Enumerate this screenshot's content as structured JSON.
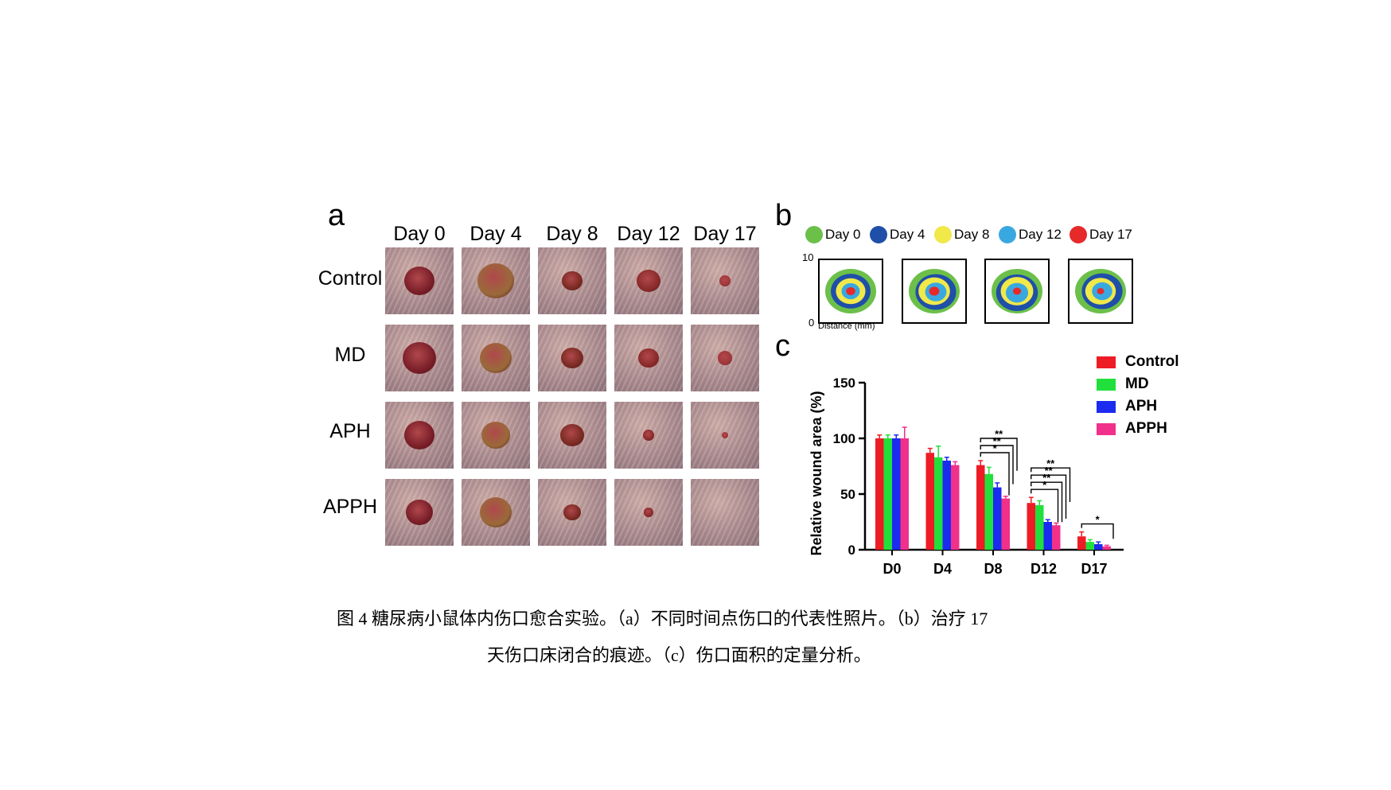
{
  "panel_a": {
    "letter": "a",
    "columns": [
      "Day 0",
      "Day 4",
      "Day 8",
      "Day 12",
      "Day 17"
    ],
    "rows": [
      "Control",
      "MD",
      "APH",
      "APPH"
    ]
  },
  "panel_b": {
    "letter": "b",
    "legend": [
      {
        "label": "Day 0",
        "color": "#6cc04a"
      },
      {
        "label": "Day 4",
        "color": "#1f4fa8"
      },
      {
        "label": "Day 8",
        "color": "#f1e84a"
      },
      {
        "label": "Day 12",
        "color": "#3aa8e0"
      },
      {
        "label": "Day 17",
        "color": "#e62a2a"
      }
    ],
    "axis_top": "10",
    "axis_bottom": "0",
    "axis_label": "Distance (mm)"
  },
  "panel_c": {
    "letter": "c"
  },
  "chart_data": {
    "type": "bar",
    "ylabel": "Relative wound area (%)",
    "xlabel": "",
    "ylim": [
      0,
      150
    ],
    "yticks": [
      "0",
      "50",
      "100",
      "150"
    ],
    "categories": [
      "D0",
      "D4",
      "D8",
      "D12",
      "D17"
    ],
    "legend_position": "top-right",
    "series": [
      {
        "name": "Control",
        "color": "#ee1c25",
        "values": [
          100,
          87,
          76,
          42,
          12
        ],
        "errors": [
          3,
          4,
          4,
          5,
          4
        ]
      },
      {
        "name": "MD",
        "color": "#22e03c",
        "values": [
          100,
          83,
          68,
          40,
          7
        ],
        "errors": [
          3,
          10,
          6,
          4,
          2
        ]
      },
      {
        "name": "APH",
        "color": "#1b2bf0",
        "values": [
          100,
          80,
          56,
          25,
          5
        ],
        "errors": [
          3,
          3,
          4,
          2,
          2
        ]
      },
      {
        "name": "APPH",
        "color": "#f0308a",
        "values": [
          100,
          76,
          46,
          22,
          3
        ],
        "errors": [
          10,
          3,
          2,
          2,
          1
        ]
      }
    ],
    "significance": [
      {
        "category": "D8",
        "marks": [
          "**",
          "**",
          "*"
        ]
      },
      {
        "category": "D12",
        "marks": [
          "**",
          "**",
          "**",
          "*"
        ]
      },
      {
        "category": "D17",
        "marks": [
          "*"
        ]
      }
    ]
  },
  "caption": {
    "line1": "图 4 糖尿病小鼠体内伤口愈合实验。（a）不同时间点伤口的代表性照片。（b）治疗 17",
    "line2": "天伤口床闭合的痕迹。（c）伤口面积的定量分析。"
  }
}
